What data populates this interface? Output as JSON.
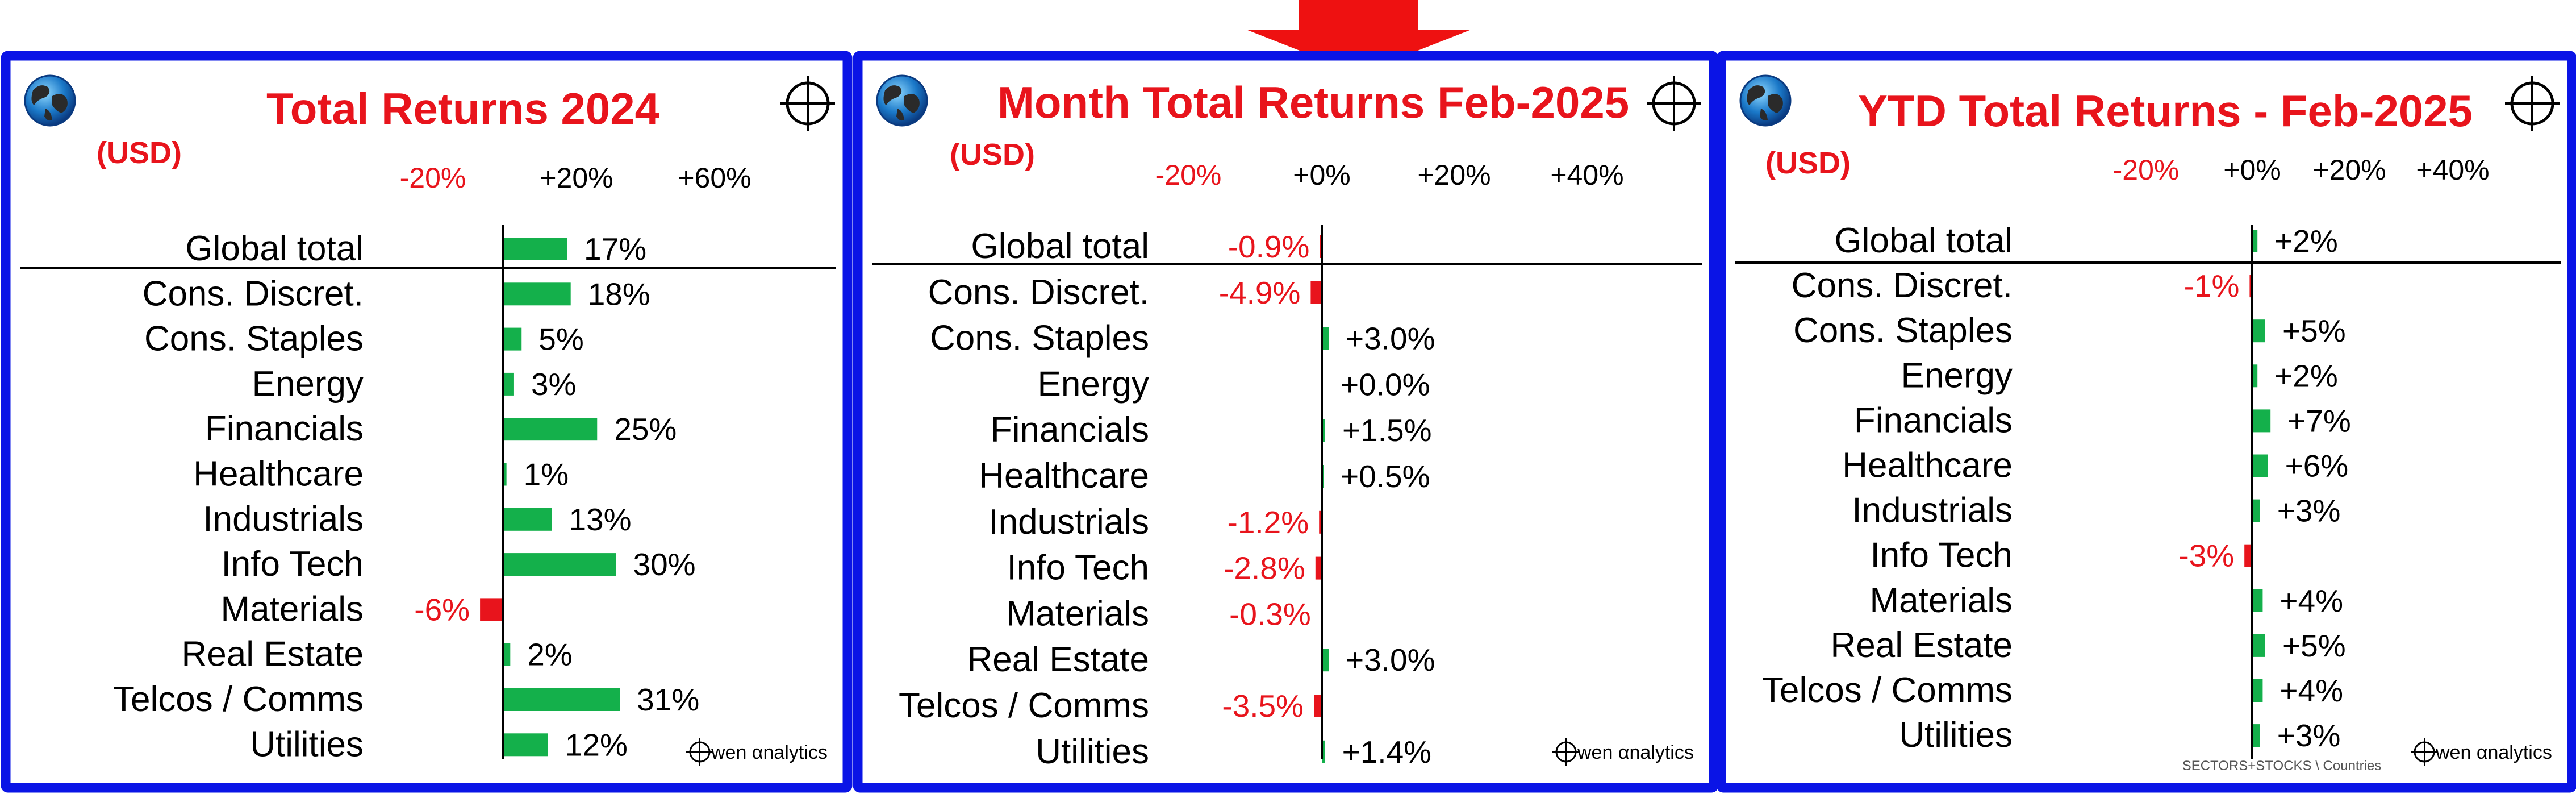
{
  "top_marker": {
    "color": "#ee1111",
    "icon": "down-arrow-icon"
  },
  "colors": {
    "frame": "#0a14e6",
    "title": "#e8141c",
    "positive_bar": "#14b04b",
    "negative": "#e8141c",
    "text": "#000000"
  },
  "panels": [
    {
      "title": "Total Returns 2024",
      "currency": "(USD)",
      "globe_icon": "globe-icon",
      "crosshair_icon": "crosshair-icon",
      "footer": {
        "logo_text": "wen αnalytics",
        "sublabel": ""
      }
    },
    {
      "title": "Month Total Returns  Feb-2025",
      "currency": "(USD)",
      "globe_icon": "globe-icon",
      "crosshair_icon": "crosshair-icon",
      "footer": {
        "logo_text": "wen αnalytics",
        "sublabel": ""
      }
    },
    {
      "title": "YTD Total Returns  -  Feb-2025",
      "currency": "(USD)",
      "globe_icon": "globe-icon",
      "crosshair_icon": "crosshair-icon",
      "footer": {
        "logo_text": "wen αnalytics",
        "sublabel": "SECTORS+STOCKS \\ Countries"
      }
    }
  ],
  "chart_data": [
    {
      "type": "bar",
      "orientation": "horizontal",
      "title": "Total Returns 2024",
      "unit": "(USD)",
      "tick_labels": [
        "-20%",
        "+20%",
        "+60%"
      ],
      "xlim": [
        -45,
        75
      ],
      "categories": [
        "Global total",
        "Cons. Discret.",
        "Cons. Staples",
        "Energy",
        "Financials",
        "Healthcare",
        "Industrials",
        "Info Tech",
        "Materials",
        "Real Estate",
        "Telcos / Comms",
        "Utilities"
      ],
      "values": [
        17,
        18,
        5,
        3,
        25,
        1,
        13,
        30,
        -6,
        2,
        31,
        12
      ],
      "value_labels": [
        "17%",
        "18%",
        "5%",
        "3%",
        "25%",
        "1%",
        "13%",
        "30%",
        "-6%",
        "2%",
        "31%",
        "12%"
      ]
    },
    {
      "type": "bar",
      "orientation": "horizontal",
      "title": "Month Total Returns  Feb-2025",
      "unit": "(USD)",
      "tick_labels": [
        "-20%",
        "+0%",
        "+20%",
        "+40%"
      ],
      "xlim": [
        -27,
        45
      ],
      "categories": [
        "Global total",
        "Cons. Discret.",
        "Cons. Staples",
        "Energy",
        "Financials",
        "Healthcare",
        "Industrials",
        "Info Tech",
        "Materials",
        "Real Estate",
        "Telcos / Comms",
        "Utilities"
      ],
      "values": [
        -0.9,
        -4.9,
        3.0,
        0.0,
        1.5,
        0.5,
        -1.2,
        -2.8,
        -0.3,
        3.0,
        -3.5,
        1.4
      ],
      "value_labels": [
        "-0.9%",
        "-4.9%",
        "+3.0%",
        "+0.0%",
        "+1.5%",
        "+0.5%",
        "-1.2%",
        "-2.8%",
        "-0.3%",
        "+3.0%",
        "-3.5%",
        "+1.4%"
      ]
    },
    {
      "type": "bar",
      "orientation": "horizontal",
      "title": "YTD Total Returns  -  Feb-2025",
      "unit": "(USD)",
      "tick_labels": [
        "-20%",
        "+0%",
        "+20%",
        "+40%"
      ],
      "xlim": [
        -27,
        45
      ],
      "categories": [
        "Global total",
        "Cons. Discret.",
        "Cons. Staples",
        "Energy",
        "Financials",
        "Healthcare",
        "Industrials",
        "Info Tech",
        "Materials",
        "Real Estate",
        "Telcos / Comms",
        "Utilities"
      ],
      "values": [
        2,
        -1,
        5,
        2,
        7,
        6,
        3,
        -3,
        4,
        5,
        4,
        3
      ],
      "value_labels": [
        "+2%",
        "-1%",
        "+5%",
        "+2%",
        "+7%",
        "+6%",
        "+3%",
        "-3%",
        "+4%",
        "+5%",
        "+4%",
        "+3%"
      ]
    }
  ]
}
